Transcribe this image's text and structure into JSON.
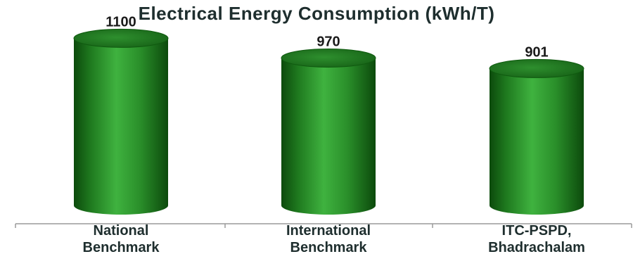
{
  "chart_data": {
    "type": "bar",
    "title": "Electrical Energy Consumption (kWh/T)",
    "categories": [
      [
        "National",
        "Benchmark"
      ],
      [
        "International",
        "Benchmark"
      ],
      [
        "ITC-PSPD,",
        "Bhadrachalam"
      ]
    ],
    "values": [
      1100,
      970,
      901
    ],
    "value_labels": [
      "1100",
      "970",
      "901"
    ],
    "ylim": [
      0,
      1250
    ],
    "grid": false,
    "bar_style": "3d-cylinder",
    "colors": {
      "bar_dark": "#0c4a0c",
      "bar_mid": "#2e9a2e",
      "bar_light": "#3fb23f",
      "bar_top": "#1d7a1d",
      "axis": "#9a9a9a",
      "text": "#1e2e2e"
    }
  }
}
